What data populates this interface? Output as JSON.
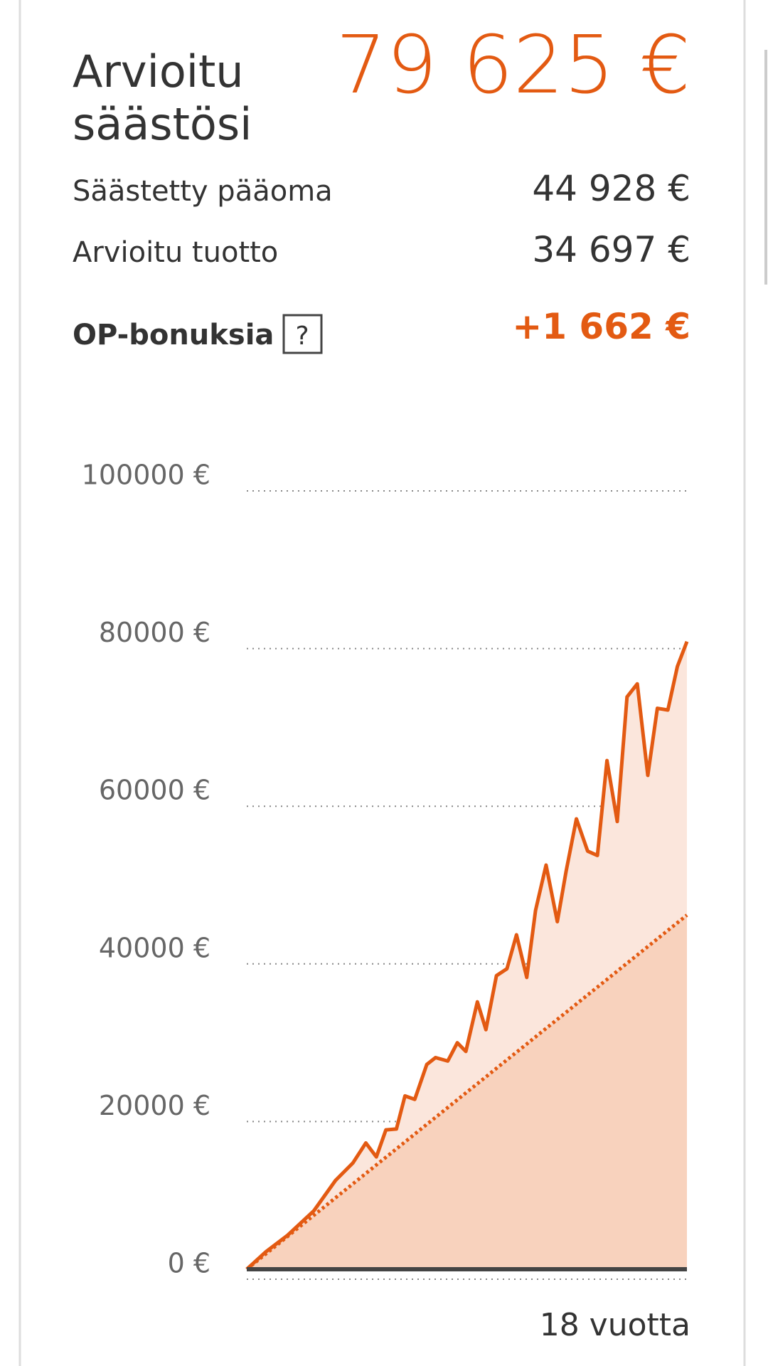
{
  "header": {
    "title_lines": [
      "Arvioitu",
      "säästösi"
    ],
    "total": "79 625 €",
    "rows": [
      {
        "label": "Säästetty pääoma",
        "value": "44 928 €"
      },
      {
        "label": "Arvioitu tuotto",
        "value": "34 697 €"
      }
    ],
    "bonus": {
      "label": "OP-bonuksia",
      "help": "?",
      "value": "+1 662 €"
    }
  },
  "chart_data": {
    "type": "area-line",
    "xlabel": "18 vuotta",
    "xlim": [
      0,
      18
    ],
    "ylim": [
      0,
      100000
    ],
    "yticks": [
      {
        "value": 0,
        "label": "0 €"
      },
      {
        "value": 20000,
        "label": "20000 €"
      },
      {
        "value": 40000,
        "label": "40000 €"
      },
      {
        "value": 60000,
        "label": "60000 €"
      },
      {
        "value": 80000,
        "label": "80000 €"
      },
      {
        "value": 100000,
        "label": "100000 €"
      }
    ],
    "grid": true,
    "series": [
      {
        "color": "#e35a12",
        "fill": "#fbe6dc",
        "dashed": false,
        "x": [
          0,
          0.78,
          1.67,
          2.74,
          3.63,
          4.34,
          4.87,
          5.3,
          5.69,
          6.12,
          6.47,
          6.87,
          7.36,
          7.72,
          8.22,
          8.61,
          8.96,
          9.43,
          9.78,
          10.21,
          10.64,
          11.03,
          11.45,
          11.81,
          12.24,
          12.7,
          13.06,
          13.48,
          13.94,
          14.34,
          14.73,
          15.15,
          15.55,
          15.97,
          16.4,
          16.79,
          17.22,
          17.61,
          18
        ],
        "values": [
          0,
          2210,
          4310,
          7400,
          11270,
          13480,
          16020,
          14250,
          17680,
          17790,
          21990,
          21550,
          25970,
          26850,
          26410,
          28730,
          27630,
          33920,
          30390,
          37240,
          38120,
          42430,
          37020,
          45530,
          51270,
          44090,
          50500,
          57130,
          53040,
          52490,
          64530,
          56800,
          72600,
          74260,
          62650,
          71160,
          70940,
          76470,
          79625
        ]
      },
      {
        "color": "#e35a12",
        "fill": "#f8d2bd",
        "dashed": true,
        "x": [
          0,
          18
        ],
        "values": [
          0,
          44928
        ]
      }
    ]
  }
}
